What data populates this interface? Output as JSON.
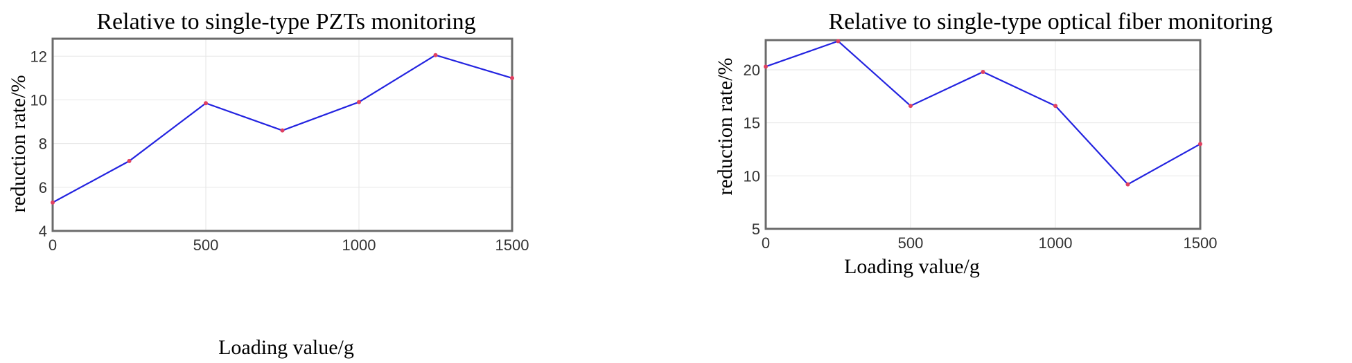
{
  "chart_data": [
    {
      "type": "line",
      "title": "Relative to single-type PZTs monitoring",
      "xlabel": "Loading value/g",
      "ylabel": "reduction rate/%",
      "x": [
        0,
        250,
        500,
        750,
        1000,
        1250,
        1500
      ],
      "xticks": [
        "0",
        "500",
        "1000",
        "1500"
      ],
      "yticks": [
        "4",
        "6",
        "8",
        "10",
        "12"
      ],
      "xlim": [
        0,
        1500
      ],
      "ylim": [
        4,
        12.8
      ],
      "grid": true,
      "series": [
        {
          "values": [
            5.3,
            7.2,
            9.85,
            8.6,
            9.9,
            12.05,
            11.0
          ]
        }
      ],
      "colors": {
        "line": "#2323e0",
        "marker": "#e04060",
        "frame": "#6b6b6b",
        "grid": "#e6e6e6"
      }
    },
    {
      "type": "line",
      "title": "Relative to single-type  optical fiber monitoring",
      "xlabel": "Loading value/g",
      "ylabel": "reduction rate/%",
      "x": [
        0,
        250,
        500,
        750,
        1000,
        1250,
        1500
      ],
      "xticks": [
        "0",
        "500",
        "1000",
        "1500"
      ],
      "yticks": [
        "5",
        "10",
        "15",
        "20"
      ],
      "xlim": [
        0,
        1500
      ],
      "ylim": [
        5,
        22.8
      ],
      "grid": true,
      "series": [
        {
          "values": [
            20.3,
            22.7,
            16.6,
            19.8,
            16.6,
            9.2,
            13.0
          ]
        }
      ],
      "colors": {
        "line": "#2323e0",
        "marker": "#e04060",
        "frame": "#6b6b6b",
        "grid": "#e6e6e6"
      }
    }
  ]
}
